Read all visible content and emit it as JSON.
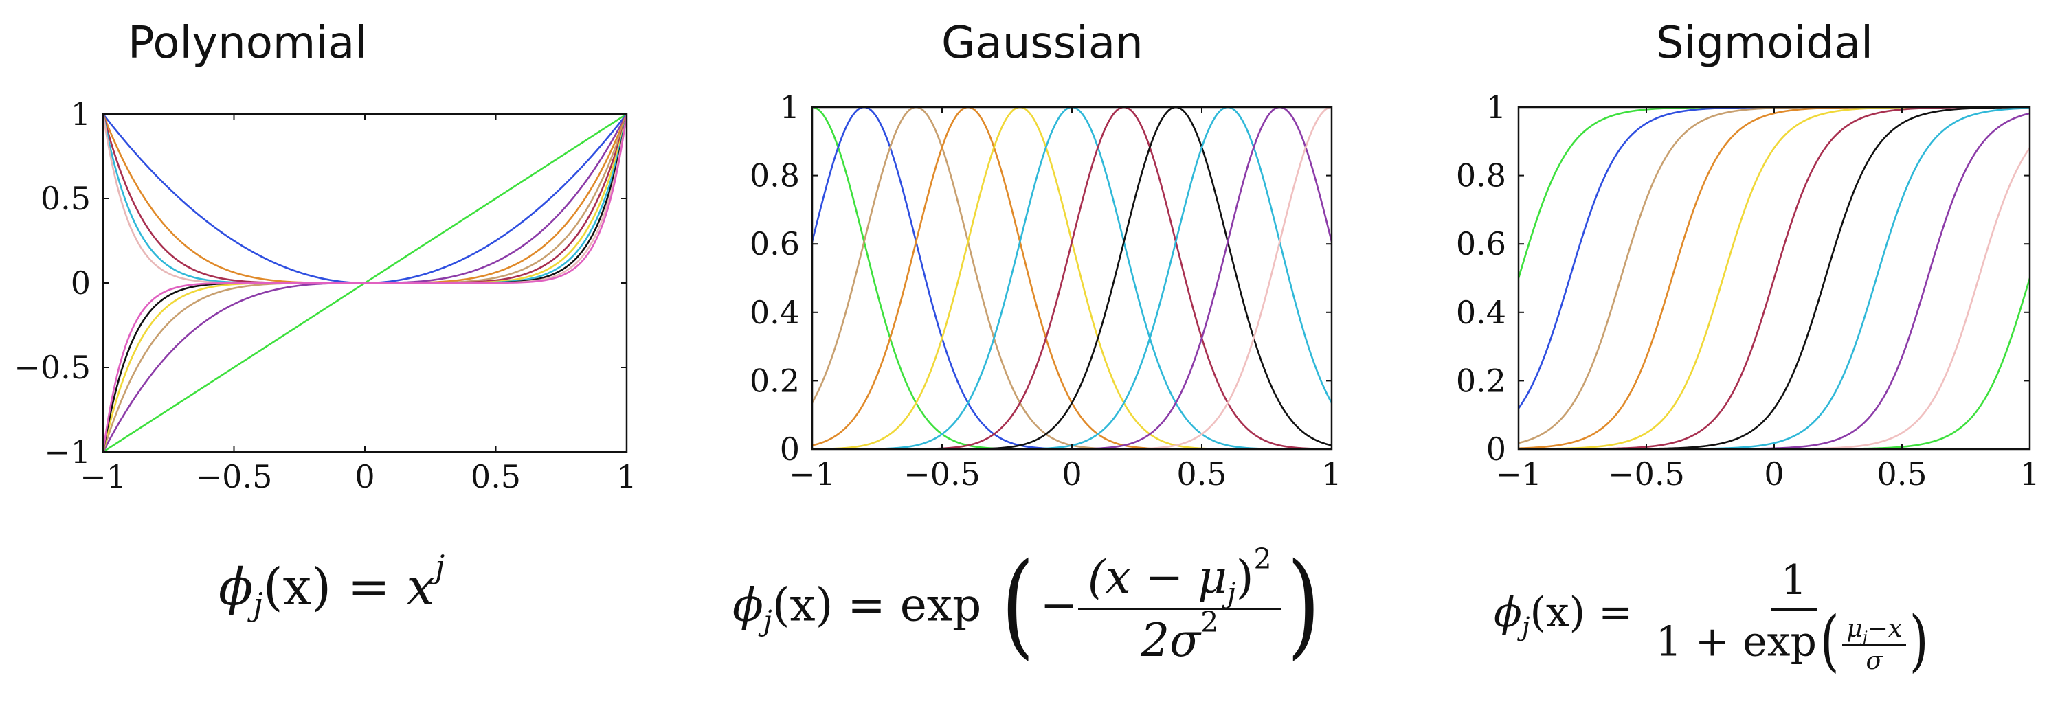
{
  "chart_data": [
    {
      "type": "line",
      "title": "Polynomial",
      "xlabel": "",
      "ylabel": "",
      "xlim": [
        -1,
        1
      ],
      "ylim": [
        -1,
        1
      ],
      "x_ticks": [
        -1,
        -0.5,
        0,
        0.5,
        1
      ],
      "x_tick_labels": [
        "−1",
        "−0.5",
        "0",
        "0.5",
        "1"
      ],
      "y_ticks": [
        -1,
        -0.5,
        0,
        0.5,
        1
      ],
      "y_tick_labels": [
        "−1",
        "−0.5",
        "0",
        "0.5",
        "1"
      ],
      "grid": false,
      "function": "x^j",
      "parameters": [
        1,
        2,
        3,
        4,
        5,
        6,
        7,
        8,
        9,
        10,
        11
      ],
      "colors": [
        "#3ee03e",
        "#2f4fe0",
        "#8c3ca8",
        "#e08a2a",
        "#c8a070",
        "#a83050",
        "#f0d838",
        "#30b8d8",
        "#111111",
        "#e8b8b8",
        "#e060c0"
      ],
      "formula": {
        "lhs": "ϕ",
        "sub": "j",
        "arg": "(x)",
        "eq": "=",
        "base": "x",
        "sup": "j"
      }
    },
    {
      "type": "line",
      "title": "Gaussian",
      "xlabel": "",
      "ylabel": "",
      "xlim": [
        -1,
        1
      ],
      "ylim": [
        0,
        1
      ],
      "x_ticks": [
        -1,
        -0.5,
        0,
        0.5,
        1
      ],
      "x_tick_labels": [
        "−1",
        "−0.5",
        "0",
        "0.5",
        "1"
      ],
      "y_ticks": [
        0,
        0.2,
        0.4,
        0.6,
        0.8,
        1
      ],
      "y_tick_labels": [
        "0",
        "0.2",
        "0.4",
        "0.6",
        "0.8",
        "1"
      ],
      "grid": false,
      "function": "exp(-(x-mu)^2/(2 sigma^2))",
      "sigma": 0.2,
      "parameters": [
        -1,
        -0.8,
        -0.6,
        -0.4,
        -0.2,
        0,
        0.2,
        0.4,
        0.6,
        0.8,
        1
      ],
      "colors": [
        "#3ee03e",
        "#2f4fe0",
        "#c8a070",
        "#e08a2a",
        "#f0d838",
        "#30b8d8",
        "#a83050",
        "#111111",
        "#30b8d8",
        "#8c3ca8",
        "#f0c0c0"
      ],
      "formula": {
        "lhs": "ϕ",
        "sub": "j",
        "arg": "(x)",
        "eq": "=",
        "fn": "exp",
        "minus": "−",
        "num_left": "(x − μ",
        "num_sub": "j",
        "num_right": ")",
        "num_sup": "2",
        "den": "2σ",
        "den_sup": "2"
      }
    },
    {
      "type": "line",
      "title": "Sigmoidal",
      "xlabel": "",
      "ylabel": "",
      "xlim": [
        -1,
        1
      ],
      "ylim": [
        0,
        1
      ],
      "x_ticks": [
        -1,
        -0.5,
        0,
        0.5,
        1
      ],
      "x_tick_labels": [
        "−1",
        "−0.5",
        "0",
        "0.5",
        "1"
      ],
      "y_ticks": [
        0,
        0.2,
        0.4,
        0.6,
        0.8,
        1
      ],
      "y_tick_labels": [
        "0",
        "0.2",
        "0.4",
        "0.6",
        "0.8",
        "1"
      ],
      "grid": false,
      "function": "1/(1+exp((mu-x)/sigma))",
      "sigma": 0.1,
      "parameters": [
        -1,
        -0.8,
        -0.6,
        -0.4,
        -0.2,
        0,
        0.2,
        0.4,
        0.6,
        0.8,
        1
      ],
      "colors": [
        "#3ee03e",
        "#2f4fe0",
        "#c8a070",
        "#e08a2a",
        "#f0d838",
        "#a83050",
        "#111111",
        "#30b8d8",
        "#8c3ca8",
        "#f0c0c0",
        "#3ee03e"
      ],
      "formula": {
        "lhs": "ϕ",
        "sub": "j",
        "arg": "(x)",
        "eq": "=",
        "num": "1",
        "den_pre": "1 + exp",
        "inner_num_left": "μ",
        "inner_num_sub": "j",
        "inner_num_right": "−x",
        "inner_den": "σ"
      }
    }
  ]
}
